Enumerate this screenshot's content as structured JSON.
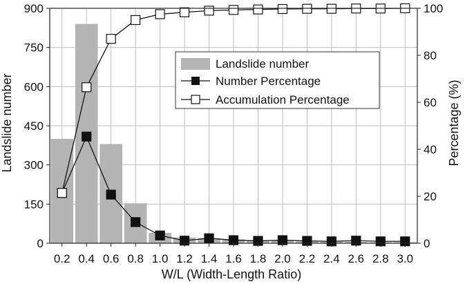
{
  "chart_data": {
    "type": "bar",
    "xlabel": "W/L (Width-Length Ratio)",
    "ylabel_left": "Landslide number",
    "ylabel_right": "Percentage (%)",
    "categories": [
      "0.2",
      "0.4",
      "0.6",
      "0.8",
      "1.0",
      "1.2",
      "1.4",
      "1.6",
      "1.8",
      "2.0",
      "2.2",
      "2.4",
      "2.6",
      "2.8",
      "3.0"
    ],
    "ylim_left": [
      0,
      900
    ],
    "yticks_left": [
      "0",
      "150",
      "300",
      "450",
      "600",
      "750",
      "900"
    ],
    "ylim_right": [
      0,
      100
    ],
    "yticks_right": [
      "0",
      "20",
      "40",
      "60",
      "80",
      "100"
    ],
    "grid": true,
    "legend_position": "upper-right",
    "series": [
      {
        "name": "Landslide number",
        "type": "bar",
        "axis": "left",
        "color": "#b4b4b4",
        "values": [
          400,
          840,
          380,
          153,
          40,
          22,
          20,
          15,
          12,
          10,
          8,
          6,
          5,
          4,
          4
        ]
      },
      {
        "name": "Number Percentage",
        "type": "line",
        "axis": "right",
        "marker": "filled-square",
        "color": "#111111",
        "values": [
          21.4,
          45.4,
          20.7,
          9.0,
          3.3,
          1.1,
          2.1,
          1.3,
          1.0,
          1.3,
          1.0,
          0.8,
          1.1,
          0.8,
          0.8
        ]
      },
      {
        "name": "Accumulation Percentage",
        "type": "line",
        "axis": "right",
        "marker": "open-square",
        "color": "#111111",
        "values": [
          21.4,
          66.4,
          87.0,
          95.0,
          97.5,
          98.3,
          99.0,
          99.3,
          99.5,
          99.7,
          99.8,
          99.8,
          99.9,
          99.9,
          100
        ]
      }
    ]
  }
}
